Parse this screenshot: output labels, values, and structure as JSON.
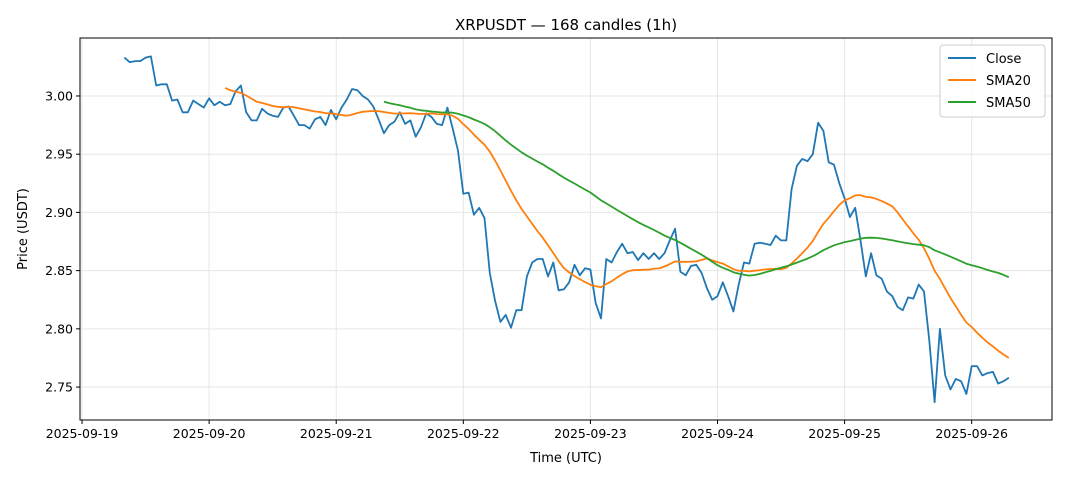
{
  "chart_data": {
    "type": "line",
    "title": "XRPUSDT — 168 candles (1h)",
    "xlabel": "Time (UTC)",
    "ylabel": "Price (USDT)",
    "start_time": "2025-09-19T08:00:00Z",
    "interval_hours": 1,
    "xlim": [
      "2025-09-18T23:37:00Z",
      "2025-09-26T15:10:00Z"
    ],
    "ylim": [
      2.7217,
      3.0498
    ],
    "x_ticks": [
      "2025-09-19",
      "2025-09-20",
      "2025-09-21",
      "2025-09-22",
      "2025-09-23",
      "2025-09-24",
      "2025-09-25",
      "2025-09-26"
    ],
    "y_ticks": [
      "2.75",
      "2.80",
      "2.85",
      "2.90",
      "2.95",
      "3.00"
    ],
    "y_tick_values": [
      2.75,
      2.8,
      2.85,
      2.9,
      2.95,
      3.0
    ],
    "grid": true,
    "legend_position": "top-right",
    "series": [
      {
        "name": "Close",
        "color": "#1f77b4",
        "values": [
          3.033,
          3.029,
          3.03,
          3.03,
          3.033,
          3.034,
          3.009,
          3.01,
          3.01,
          2.996,
          2.997,
          2.986,
          2.986,
          2.996,
          2.993,
          2.99,
          2.998,
          2.992,
          2.995,
          2.992,
          2.993,
          3.004,
          3.009,
          2.986,
          2.979,
          2.979,
          2.989,
          2.985,
          2.983,
          2.982,
          2.99,
          2.991,
          2.983,
          2.975,
          2.975,
          2.972,
          2.98,
          2.982,
          2.975,
          2.988,
          2.98,
          2.99,
          2.997,
          3.006,
          3.005,
          3.0,
          2.997,
          2.991,
          2.98,
          2.968,
          2.975,
          2.978,
          2.986,
          2.976,
          2.979,
          2.965,
          2.973,
          2.985,
          2.982,
          2.976,
          2.975,
          2.99,
          2.972,
          2.953,
          2.916,
          2.917,
          2.898,
          2.904,
          2.895,
          2.848,
          2.824,
          2.806,
          2.812,
          2.801,
          2.816,
          2.816,
          2.845,
          2.857,
          2.86,
          2.86,
          2.845,
          2.857,
          2.833,
          2.834,
          2.84,
          2.855,
          2.846,
          2.852,
          2.851,
          2.822,
          2.809,
          2.86,
          2.857,
          2.866,
          2.873,
          2.865,
          2.866,
          2.859,
          2.865,
          2.86,
          2.865,
          2.86,
          2.865,
          2.876,
          2.886,
          2.849,
          2.846,
          2.854,
          2.855,
          2.848,
          2.835,
          2.825,
          2.828,
          2.84,
          2.828,
          2.815,
          2.838,
          2.857,
          2.856,
          2.873,
          2.874,
          2.873,
          2.872,
          2.88,
          2.876,
          2.876,
          2.92,
          2.94,
          2.946,
          2.944,
          2.95,
          2.977,
          2.97,
          2.943,
          2.941,
          2.925,
          2.912,
          2.896,
          2.904,
          2.876,
          2.845,
          2.865,
          2.846,
          2.843,
          2.832,
          2.828,
          2.819,
          2.816,
          2.827,
          2.826,
          2.838,
          2.832,
          2.79,
          2.737,
          2.8,
          2.76,
          2.748,
          2.757,
          2.755,
          2.744,
          2.768,
          2.768,
          2.76,
          2.762,
          2.763,
          2.753,
          2.755,
          2.758
        ]
      },
      {
        "name": "SMA20",
        "color": "#ff7f0e",
        "window": 20
      },
      {
        "name": "SMA50",
        "color": "#2ca02c",
        "window": 50
      }
    ]
  }
}
